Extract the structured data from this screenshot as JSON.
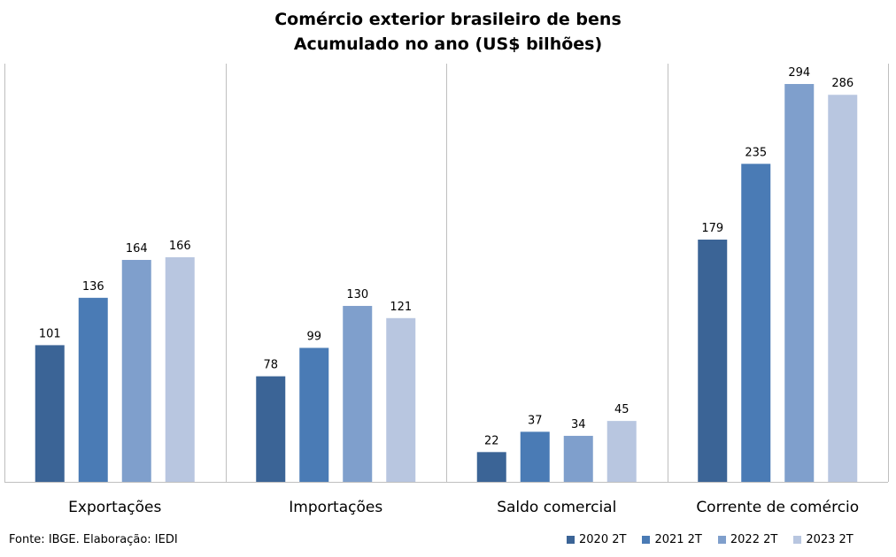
{
  "title_line1": "Comércio exterior brasileiro de bens",
  "title_line2": "Acumulado no ano (US$ bilhões)",
  "source": "Fonte: IBGE. Elaboração: IEDI",
  "colors": [
    "#3b6496",
    "#4a7bb5",
    "#7f9fcc",
    "#b8c6e0"
  ],
  "chart_data": {
    "type": "bar",
    "title": "Comércio exterior brasileiro de bens — Acumulado no ano (US$ bilhões)",
    "categories": [
      "Exportações",
      "Importações",
      "Saldo comercial",
      "Corrente de comércio"
    ],
    "series": [
      {
        "name": "2020 2T",
        "values": [
          101,
          78,
          22,
          179
        ]
      },
      {
        "name": "2021 2T",
        "values": [
          136,
          99,
          37,
          235
        ]
      },
      {
        "name": "2022 2T",
        "values": [
          164,
          130,
          34,
          294
        ]
      },
      {
        "name": "2023 2T",
        "values": [
          166,
          121,
          45,
          286
        ]
      }
    ],
    "ylim": [
      0,
      310
    ],
    "grid": false,
    "legend": "bottom-right",
    "data_labels": true
  }
}
